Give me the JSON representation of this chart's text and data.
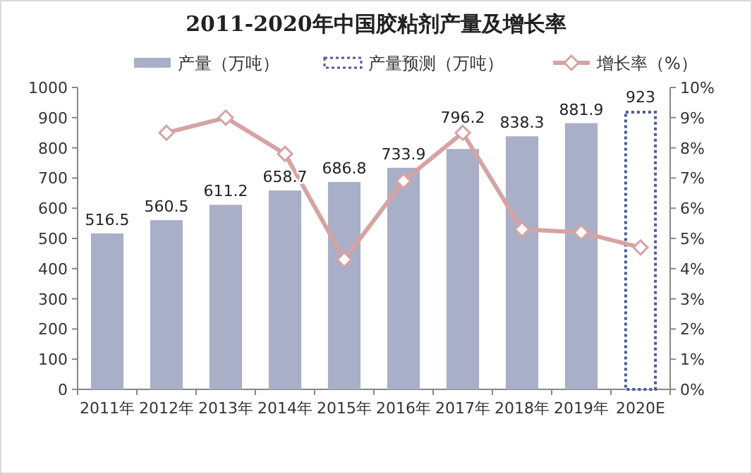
{
  "chart_data": {
    "type": "bar",
    "title": "2011-2020年中国胶粘剂产量及增长率",
    "categories": [
      "2011年",
      "2012年",
      "2013年",
      "2014年",
      "2015年",
      "2016年",
      "2017年",
      "2018年",
      "2019年",
      "2020E"
    ],
    "series": [
      {
        "name": "产量（万吨）",
        "color": "#a9afc7",
        "values": [
          516.5,
          560.5,
          611.2,
          658.7,
          686.8,
          733.9,
          796.2,
          838.3,
          881.9,
          null
        ],
        "value_labels": [
          "516.5",
          "560.5",
          "611.2",
          "658.7",
          "686.8",
          "733.9",
          "796.2",
          "838.3",
          "881.9",
          null
        ]
      },
      {
        "name": "产量预测（万吨）",
        "color": "#4b5a99",
        "line_style": "dotted",
        "values": [
          null,
          null,
          null,
          null,
          null,
          null,
          null,
          null,
          null,
          923
        ],
        "value_labels": [
          null,
          null,
          null,
          null,
          null,
          null,
          null,
          null,
          null,
          "923"
        ]
      },
      {
        "name": "增长率（%）",
        "type": "line",
        "axis": "y2",
        "marker": "diamond",
        "color": "#d6a3a3",
        "values": [
          null,
          8.5,
          9.0,
          7.8,
          4.3,
          6.9,
          8.5,
          5.3,
          5.2,
          4.7
        ]
      }
    ],
    "ylim": [
      0,
      1000
    ],
    "yticks": [
      0,
      100,
      200,
      300,
      400,
      500,
      600,
      700,
      800,
      900,
      1000
    ],
    "y2lim": [
      0,
      10
    ],
    "y2ticks": [
      {
        "value": 0,
        "label": "0%"
      },
      {
        "value": 1,
        "label": "1%"
      },
      {
        "value": 2,
        "label": "2%"
      },
      {
        "value": 3,
        "label": "3%"
      },
      {
        "value": 4,
        "label": "4%"
      },
      {
        "value": 5,
        "label": "5%"
      },
      {
        "value": 6,
        "label": "6%"
      },
      {
        "value": 7,
        "label": "7%"
      },
      {
        "value": 8,
        "label": "8%"
      },
      {
        "value": 9,
        "label": "9%"
      },
      {
        "value": 10,
        "label": "10%"
      }
    ],
    "legend": "top"
  }
}
